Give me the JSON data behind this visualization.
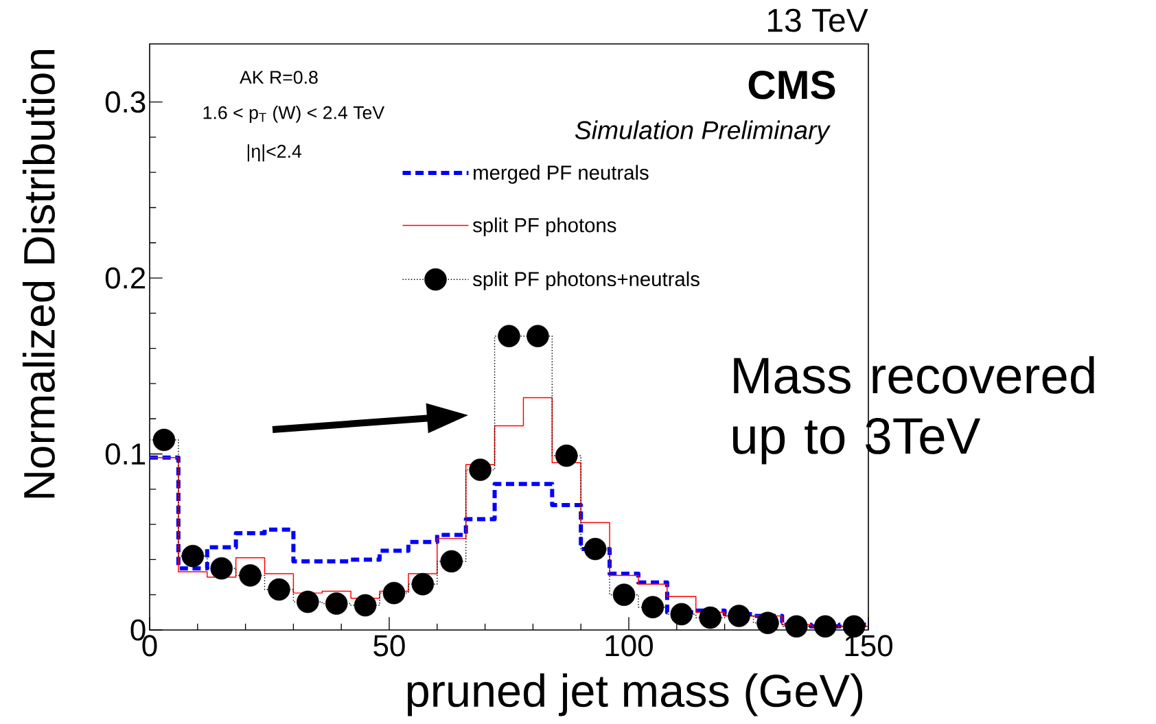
{
  "chart_data": {
    "type": "histogram",
    "xlabel": "pruned jet mass (GeV)",
    "ylabel": "Normalized Distribution",
    "annotations": [
      "13 TeV",
      "CMS",
      "Simulation Preliminary",
      "AK R=0.8",
      "1.6 < p$_{T}$ (W) < 2.4 TeV",
      "|η|<2.4",
      "Mass recovered up to 3TeV"
    ],
    "bins": [
      0,
      6,
      12,
      18,
      24,
      30,
      36,
      42,
      48,
      54,
      60,
      66,
      72,
      78,
      84,
      90,
      96,
      102,
      108,
      114,
      120,
      126,
      132,
      138,
      144,
      150
    ],
    "series": [
      {
        "name": "merged PF neutrals",
        "color": "#0000ff",
        "line_style": "dashed",
        "marker": "none",
        "values": [
          0.098,
          0.035,
          0.047,
          0.055,
          0.057,
          0.039,
          0.039,
          0.04,
          0.045,
          0.05,
          0.054,
          0.063,
          0.083,
          0.083,
          0.071,
          0.046,
          0.032,
          0.027,
          0.01,
          0.011,
          0.009,
          0.008,
          0.003,
          0.002,
          0.003
        ]
      },
      {
        "name": "split PF photons",
        "color": "#ff0000",
        "line_style": "solid",
        "marker": "none",
        "values": [
          0.098,
          0.033,
          0.03,
          0.041,
          0.032,
          0.021,
          0.022,
          0.018,
          0.022,
          0.032,
          0.052,
          0.094,
          0.116,
          0.132,
          0.095,
          0.061,
          0.031,
          0.026,
          0.019,
          0.01,
          0.008,
          0.008,
          0.003,
          0.002,
          0.002
        ]
      },
      {
        "color": "#000000",
        "line_style": "dotted",
        "marker": "none",
        "values": [
          0.108,
          0.042,
          0.035,
          0.031,
          0.023,
          0.016,
          0.015,
          0.014,
          0.021,
          0.026,
          0.039,
          0.091,
          0.167,
          0.167,
          0.099,
          0.046,
          0.02,
          0.013,
          0.009,
          0.007,
          0.008,
          0.004,
          0.002,
          0.002,
          0.002
        ]
      },
      {
        "name": "split PF photons+neutrals",
        "type": "scatter",
        "x": [
          3,
          9,
          15,
          21,
          27,
          33,
          39,
          45,
          51,
          57,
          63,
          69,
          75,
          81,
          87,
          93,
          99,
          105,
          111,
          117,
          123,
          129,
          135,
          141,
          147
        ],
        "color": "#000000",
        "line_style": "dotted",
        "marker": "circle",
        "values": [
          0.108,
          0.042,
          0.035,
          0.031,
          0.023,
          0.016,
          0.015,
          0.014,
          0.021,
          0.026,
          0.039,
          0.091,
          0.167,
          0.167,
          0.099,
          0.046,
          0.02,
          0.013,
          0.009,
          0.007,
          0.008,
          0.004,
          0.002,
          0.002,
          0.002
        ]
      }
    ],
    "xlim": [
      0,
      150
    ],
    "ylim": [
      0,
      0.333
    ],
    "xticks": [
      0,
      50,
      100,
      150
    ],
    "yticks": [
      0,
      0.1,
      0.2,
      0.3
    ],
    "legend": "top"
  }
}
